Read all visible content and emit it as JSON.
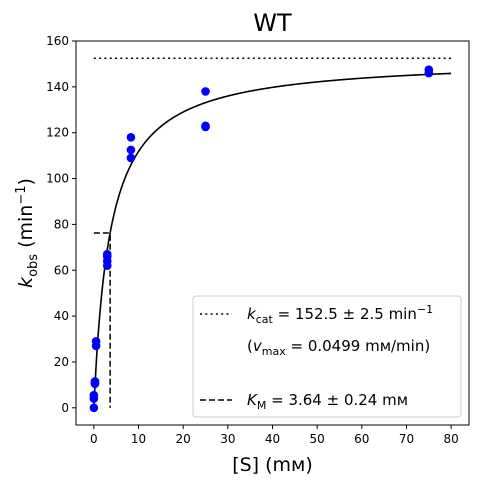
{
  "chart_data": {
    "type": "scatter",
    "title": "WT",
    "xlabel": "[S] (mм)",
    "ylabel": {
      "base": "k",
      "sub": "obs",
      "unit_pre": " (min",
      "sup": "−1",
      "unit_post": ")"
    },
    "xlim": [
      -4,
      84
    ],
    "ylim": [
      -7.5,
      160
    ],
    "xticks": [
      0,
      10,
      20,
      30,
      40,
      50,
      60,
      70,
      80
    ],
    "yticks": [
      0,
      20,
      40,
      60,
      80,
      100,
      120,
      140,
      160
    ],
    "grid": false,
    "legend_placement": "lower-right",
    "colors": {
      "points": "#0000ff",
      "fit": "#000000",
      "refs": "#000000"
    },
    "points": {
      "x": [
        0,
        0,
        0,
        0.25,
        0.25,
        0.25,
        0.5,
        0.5,
        3,
        3,
        3,
        3,
        8.3,
        8.3,
        8.3,
        25,
        25,
        25,
        75,
        75
      ],
      "y": [
        0,
        4,
        5.5,
        10.5,
        11.5,
        10.5,
        27,
        29,
        62,
        64,
        67,
        66,
        109,
        112.5,
        118,
        122.5,
        123,
        138,
        146,
        147.5
      ]
    },
    "fit": {
      "model": "michaelis-menten",
      "kcat": 152.5,
      "km": 3.64,
      "x_range": [
        0,
        80
      ]
    },
    "kcat_line": {
      "y": 152.5,
      "x_range": [
        0,
        80
      ]
    },
    "km_line": {
      "x": 3.64,
      "y_top": 76.25,
      "x_start": 0
    },
    "legend": [
      {
        "style": "dotted",
        "prefix": "k",
        "sub": "cat",
        "text": " = 152.5 ± 2.5 min",
        "sup": "−1"
      },
      {
        "style": "none",
        "prefix": "(v",
        "sub": "max",
        "text": " = 0.0499 mм/min)",
        "sup": ""
      },
      {
        "style": "dashed",
        "prefix": "K",
        "sub": "M",
        "text": " = 3.64 ± 0.24 mм",
        "sup": ""
      }
    ]
  }
}
